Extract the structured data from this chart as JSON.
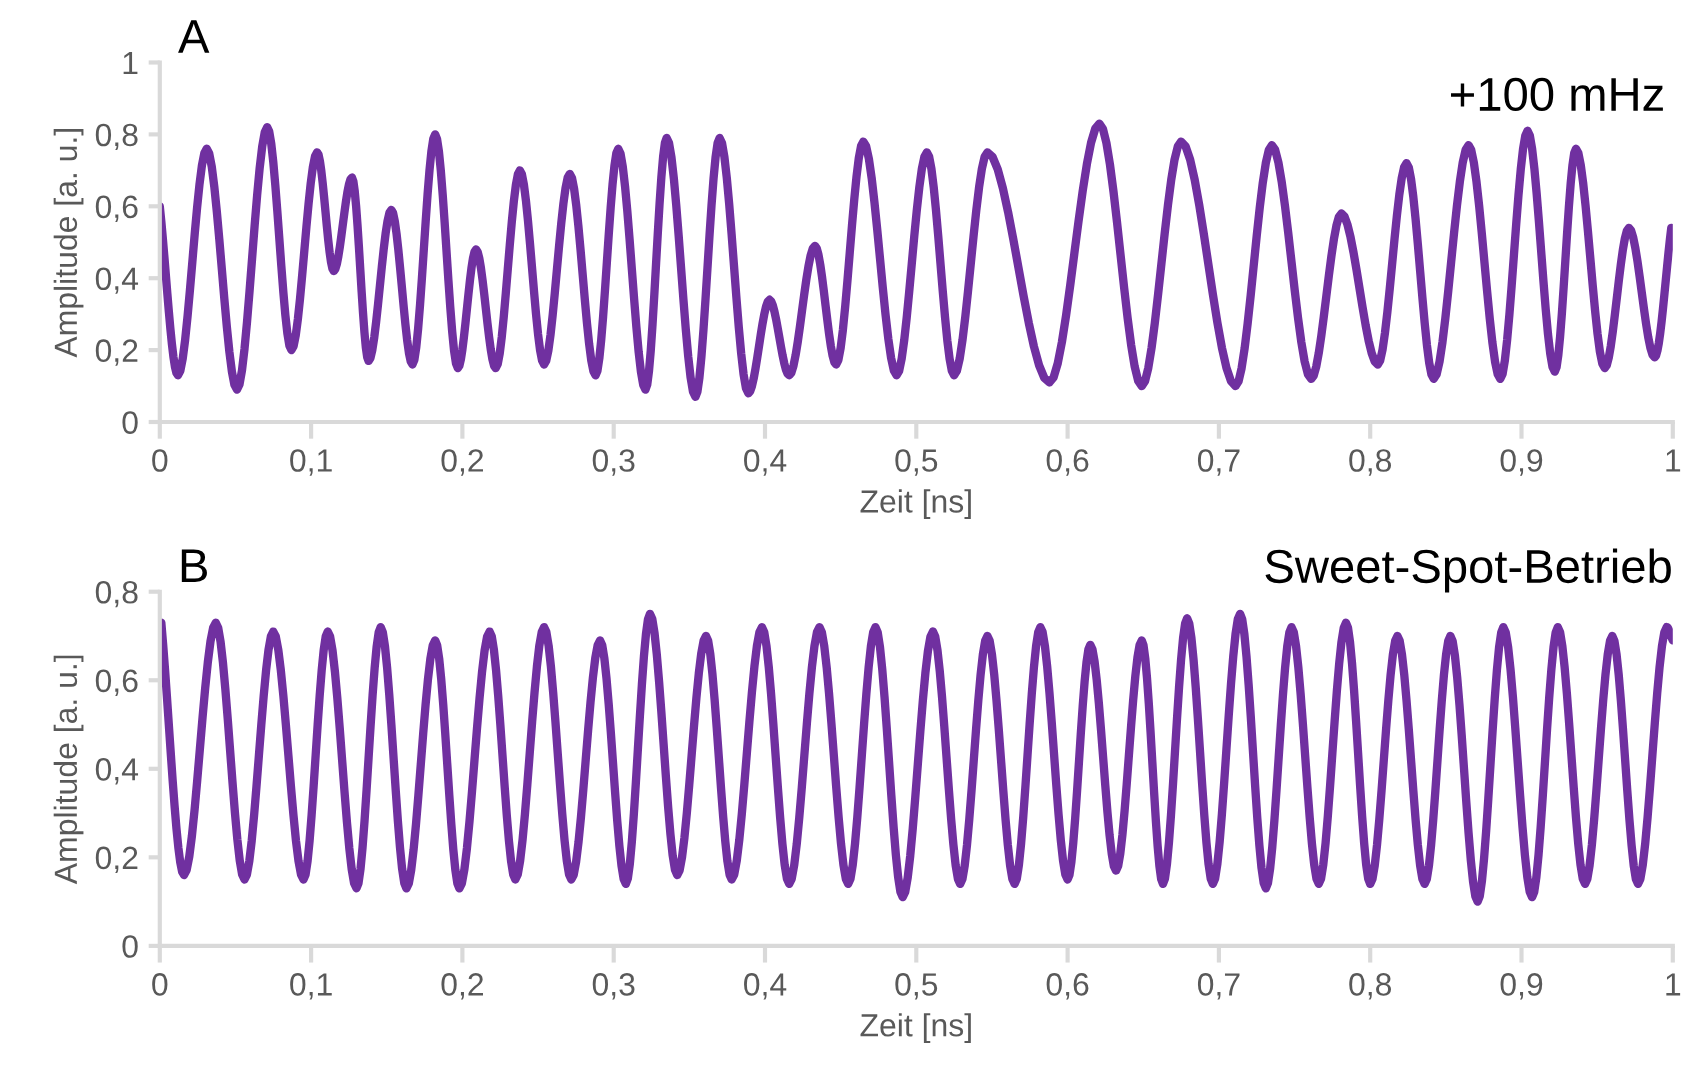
{
  "chart_data": [
    {
      "type": "line",
      "title": "A",
      "xlabel": "Zeit [ns]",
      "ylabel": "Amplitude [a. u.]",
      "annotations": [
        "+100 mHz"
      ],
      "x": [
        0,
        0.012,
        0.031,
        0.051,
        0.071,
        0.087,
        0.104,
        0.115,
        0.127,
        0.138,
        0.153,
        0.167,
        0.182,
        0.197,
        0.209,
        0.222,
        0.238,
        0.254,
        0.271,
        0.288,
        0.303,
        0.321,
        0.335,
        0.354,
        0.37,
        0.389,
        0.403,
        0.416,
        0.433,
        0.447,
        0.465,
        0.487,
        0.507,
        0.525,
        0.547,
        0.588,
        0.621,
        0.649,
        0.675,
        0.711,
        0.735,
        0.761,
        0.781,
        0.805,
        0.824,
        0.842,
        0.865,
        0.886,
        0.904,
        0.922,
        0.936,
        0.955,
        0.971,
        0.988,
        0.999
      ],
      "series": [
        {
          "color": "#7030a0",
          "values": [
            0.6,
            0.13,
            0.76,
            0.09,
            0.82,
            0.2,
            0.75,
            0.42,
            0.68,
            0.17,
            0.59,
            0.16,
            0.8,
            0.15,
            0.48,
            0.15,
            0.7,
            0.16,
            0.69,
            0.13,
            0.76,
            0.09,
            0.79,
            0.07,
            0.79,
            0.08,
            0.34,
            0.13,
            0.49,
            0.16,
            0.78,
            0.13,
            0.75,
            0.13,
            0.75,
            0.11,
            0.83,
            0.1,
            0.78,
            0.1,
            0.77,
            0.12,
            0.58,
            0.16,
            0.72,
            0.12,
            0.77,
            0.12,
            0.81,
            0.14,
            0.76,
            0.15,
            0.54,
            0.18,
            0.54
          ]
        }
      ],
      "xlim": [
        0,
        1
      ],
      "xticks": [
        0,
        {
          "value": 0.1,
          "label": "0,1"
        },
        {
          "value": 0.2,
          "label": "0,2"
        },
        {
          "value": 0.3,
          "label": "0,3"
        },
        {
          "value": 0.4,
          "label": "0,4"
        },
        {
          "value": 0.5,
          "label": "0,5"
        },
        {
          "value": 0.6,
          "label": "0,6"
        },
        {
          "value": 0.7,
          "label": "0,7"
        },
        {
          "value": 0.8,
          "label": "0,8"
        },
        {
          "value": 0.9,
          "label": "0,9"
        },
        1
      ],
      "ylim": [
        0,
        1
      ],
      "yticks": [
        0,
        {
          "value": 0.2,
          "label": "0,2"
        },
        {
          "value": 0.4,
          "label": "0,4"
        },
        {
          "value": 0.6,
          "label": "0,6"
        },
        {
          "value": 0.8,
          "label": "0,8"
        },
        1
      ],
      "grid": false,
      "marker": "none",
      "line_style": "solid"
    },
    {
      "type": "line",
      "title": "B",
      "xlabel": "Zeit [ns]",
      "ylabel": "Amplitude [a. u.]",
      "annotations": [
        "Sweet-Spot-Betrieb"
      ],
      "x": [
        0.001,
        0.016,
        0.037,
        0.056,
        0.075,
        0.095,
        0.111,
        0.13,
        0.146,
        0.163,
        0.182,
        0.198,
        0.218,
        0.235,
        0.254,
        0.272,
        0.291,
        0.308,
        0.324,
        0.342,
        0.361,
        0.378,
        0.398,
        0.416,
        0.436,
        0.455,
        0.473,
        0.491,
        0.511,
        0.529,
        0.547,
        0.565,
        0.582,
        0.6,
        0.615,
        0.632,
        0.649,
        0.663,
        0.679,
        0.696,
        0.714,
        0.731,
        0.748,
        0.766,
        0.784,
        0.8,
        0.818,
        0.836,
        0.853,
        0.871,
        0.888,
        0.907,
        0.924,
        0.942,
        0.96,
        0.977,
        0.996,
        1
      ],
      "series": [
        {
          "color": "#7030a0",
          "values": [
            0.73,
            0.16,
            0.73,
            0.15,
            0.71,
            0.15,
            0.71,
            0.13,
            0.72,
            0.13,
            0.69,
            0.13,
            0.71,
            0.15,
            0.72,
            0.15,
            0.69,
            0.14,
            0.75,
            0.16,
            0.7,
            0.15,
            0.72,
            0.14,
            0.72,
            0.14,
            0.72,
            0.11,
            0.71,
            0.14,
            0.7,
            0.14,
            0.72,
            0.15,
            0.68,
            0.17,
            0.69,
            0.14,
            0.74,
            0.14,
            0.75,
            0.13,
            0.72,
            0.14,
            0.73,
            0.14,
            0.7,
            0.14,
            0.7,
            0.1,
            0.72,
            0.11,
            0.72,
            0.14,
            0.7,
            0.14,
            0.72,
            0.69
          ]
        }
      ],
      "xlim": [
        0,
        1
      ],
      "xticks": [
        0,
        {
          "value": 0.1,
          "label": "0,1"
        },
        {
          "value": 0.2,
          "label": "0,2"
        },
        {
          "value": 0.3,
          "label": "0,3"
        },
        {
          "value": 0.4,
          "label": "0,4"
        },
        {
          "value": 0.5,
          "label": "0,5"
        },
        {
          "value": 0.6,
          "label": "0,6"
        },
        {
          "value": 0.7,
          "label": "0,7"
        },
        {
          "value": 0.8,
          "label": "0,8"
        },
        {
          "value": 0.9,
          "label": "0,9"
        },
        1
      ],
      "ylim": [
        0,
        0.8
      ],
      "yticks": [
        0,
        {
          "value": 0.2,
          "label": "0,2"
        },
        {
          "value": 0.4,
          "label": "0,4"
        },
        {
          "value": 0.6,
          "label": "0,6"
        },
        {
          "value": 0.8,
          "label": "0,8"
        }
      ],
      "grid": false,
      "marker": "none",
      "line_style": "solid"
    }
  ]
}
